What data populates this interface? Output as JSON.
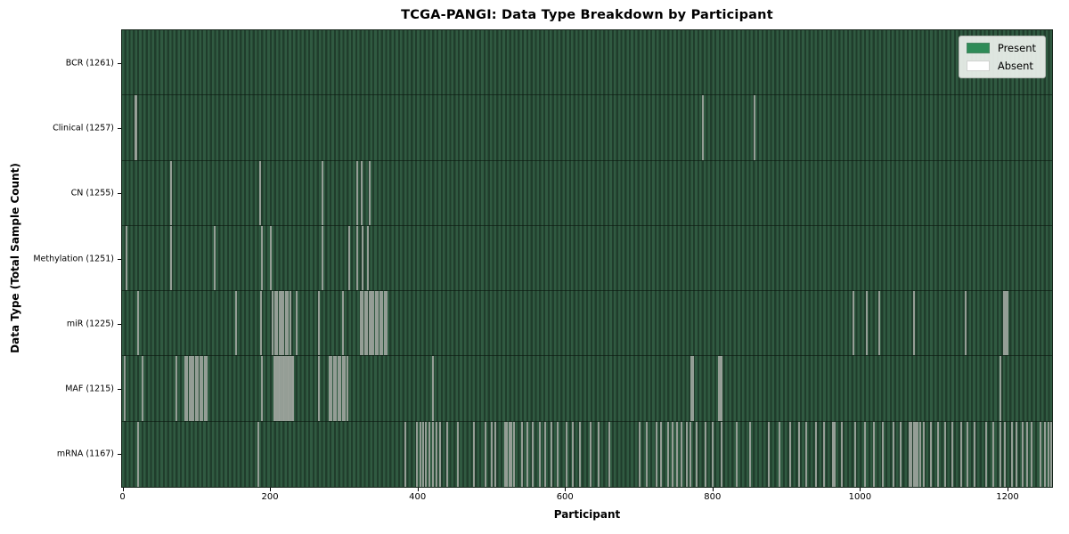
{
  "chart_data": {
    "type": "heatmap",
    "title": "TCGA-PANGI: Data Type Breakdown by Participant",
    "xlabel": "Participant",
    "ylabel": "Data Type (Total Sample Count)",
    "x_ticks": [
      0,
      200,
      400,
      600,
      800,
      1000,
      1200
    ],
    "x_range": [
      0,
      1261
    ],
    "n_participants": 1261,
    "grid": false,
    "legend_position": "upper right",
    "legend": [
      {
        "label": "Present",
        "color": "#2e8b57"
      },
      {
        "label": "Absent",
        "color": "#ffffff"
      }
    ],
    "colors": {
      "present_fill": "#2e8b57",
      "present_stripe_light": "#305a41",
      "present_stripe_dark": "#203d2c",
      "absent_stripe": "#9ba29b",
      "row_separator": "#16281c",
      "plot_border": "#15241a",
      "legend_bg": "#eef2ee",
      "legend_border": "#b6bab6"
    },
    "rows": [
      {
        "label": "BCR (1261)",
        "data_type": "BCR",
        "total_samples": 1261,
        "absent_count": 0,
        "absent_participants": []
      },
      {
        "label": "Clinical (1257)",
        "data_type": "Clinical",
        "total_samples": 1257,
        "absent_count": 4,
        "absent_participants": [
          17,
          18,
          786,
          856
        ]
      },
      {
        "label": "CN (1255)",
        "data_type": "CN",
        "total_samples": 1255,
        "absent_count": 6,
        "absent_participants": [
          65,
          186,
          270,
          318,
          324,
          334
        ]
      },
      {
        "label": "Methylation (1251)",
        "data_type": "Methylation",
        "total_samples": 1251,
        "absent_count": 10,
        "absent_participants": [
          5,
          65,
          125,
          188,
          200,
          271,
          307,
          318,
          325,
          332
        ]
      },
      {
        "label": "miR (1225)",
        "data_type": "miR",
        "total_samples": 1225,
        "absent_count": 36,
        "absent_participants": [
          20,
          154,
          187,
          203,
          206,
          209,
          212,
          215,
          218,
          221,
          224,
          227,
          236,
          266,
          298,
          322,
          325,
          328,
          331,
          334,
          337,
          340,
          343,
          346,
          349,
          352,
          355,
          358,
          990,
          1009,
          1025,
          1072,
          1143,
          1195,
          1197,
          1199
        ]
      },
      {
        "label": "MAF (1215)",
        "data_type": "MAF",
        "total_samples": 1215,
        "absent_count": 46,
        "absent_participants": [
          2,
          26,
          72,
          84,
          87,
          90,
          93,
          96,
          99,
          102,
          105,
          108,
          111,
          114,
          189,
          205,
          207,
          209,
          211,
          213,
          215,
          217,
          219,
          221,
          223,
          225,
          227,
          229,
          231,
          266,
          280,
          283,
          286,
          289,
          292,
          295,
          298,
          301,
          304,
          420,
          771,
          773,
          808,
          810,
          812,
          1190
        ]
      },
      {
        "label": "mRNA (1167)",
        "data_type": "mRNA",
        "total_samples": 1167,
        "absent_count": 94,
        "absent_participants": [
          20,
          183,
          383,
          399,
          403,
          407,
          411,
          415,
          420,
          425,
          430,
          440,
          454,
          476,
          492,
          500,
          505,
          518,
          521,
          524,
          527,
          530,
          541,
          548,
          556,
          565,
          572,
          581,
          590,
          602,
          610,
          620,
          634,
          645,
          660,
          700,
          710,
          724,
          730,
          739,
          745,
          751,
          757,
          765,
          770,
          778,
          790,
          800,
          812,
          832,
          850,
          876,
          890,
          905,
          917,
          927,
          940,
          950,
          963,
          965,
          975,
          993,
          1006,
          1018,
          1030,
          1045,
          1055,
          1066,
          1069,
          1072,
          1075,
          1078,
          1081,
          1086,
          1095,
          1105,
          1115,
          1125,
          1136,
          1145,
          1155,
          1171,
          1180,
          1190,
          1196,
          1205,
          1211,
          1220,
          1226,
          1232,
          1244,
          1250,
          1255,
          1258
        ]
      }
    ]
  }
}
